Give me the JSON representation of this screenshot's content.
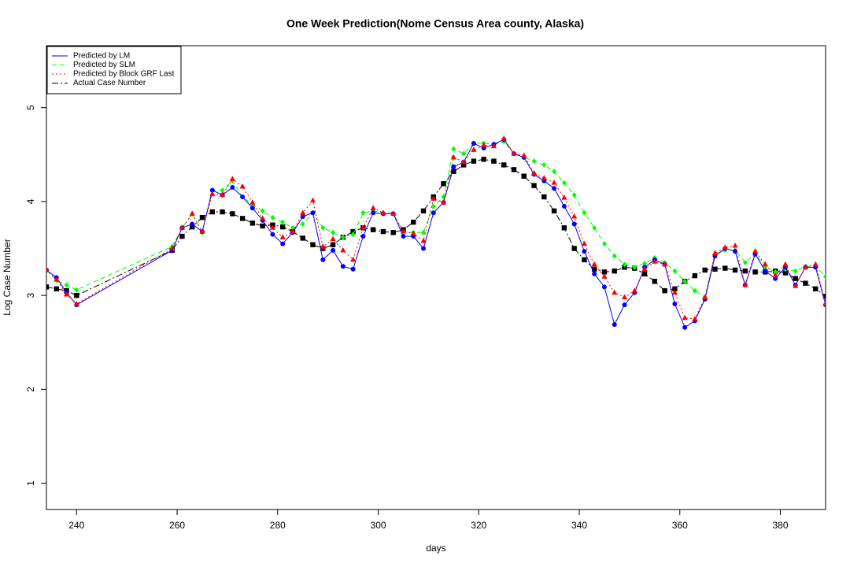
{
  "chart_data": {
    "type": "line",
    "title": "One Week Prediction(Nome Census Area county, Alaska)",
    "x_label": "days",
    "y_label": "Log Case Number",
    "xlim": [
      234,
      389
    ],
    "ylim": [
      0.72,
      5.66
    ],
    "xticks": [
      240,
      260,
      280,
      300,
      320,
      340,
      360,
      380
    ],
    "yticks": [
      1,
      2,
      3,
      4,
      5
    ],
    "legend_position": "top-left",
    "x": [
      234,
      236,
      238,
      240,
      259,
      261,
      263,
      265,
      267,
      269,
      271,
      273,
      275,
      277,
      279,
      281,
      283,
      285,
      287,
      289,
      291,
      293,
      295,
      297,
      299,
      301,
      303,
      305,
      307,
      309,
      311,
      313,
      315,
      317,
      319,
      321,
      323,
      325,
      327,
      329,
      331,
      333,
      335,
      337,
      339,
      341,
      343,
      345,
      347,
      349,
      351,
      353,
      355,
      357,
      359,
      361,
      363,
      365,
      367,
      369,
      371,
      373,
      375,
      377,
      379,
      381,
      383,
      385,
      387,
      389
    ],
    "series": [
      {
        "name": "Predicted by LM",
        "color": "#0000ff",
        "line_style": "solid",
        "marker": "circle",
        "values": [
          3.27,
          3.19,
          3.03,
          2.9,
          3.48,
          3.72,
          3.76,
          3.68,
          4.12,
          4.07,
          4.15,
          4.05,
          3.93,
          3.8,
          3.65,
          3.55,
          3.67,
          3.84,
          3.88,
          3.38,
          3.48,
          3.31,
          3.28,
          3.63,
          3.88,
          3.87,
          3.87,
          3.63,
          3.63,
          3.5,
          3.88,
          3.99,
          4.37,
          4.42,
          4.62,
          4.57,
          4.61,
          4.66,
          4.51,
          4.47,
          4.29,
          4.22,
          4.14,
          3.95,
          3.76,
          3.47,
          3.23,
          3.09,
          2.69,
          2.9,
          3.03,
          3.3,
          3.38,
          3.33,
          2.91,
          2.66,
          2.73,
          2.96,
          3.42,
          3.5,
          3.47,
          3.11,
          3.44,
          3.26,
          3.18,
          3.3,
          3.11,
          3.3,
          3.3,
          2.9
        ]
      },
      {
        "name": "Predicted by SLM",
        "color": "#00ff00",
        "line_style": "dashed",
        "marker": "diamond",
        "values": [
          3.27,
          3.16,
          3.11,
          3.06,
          3.52,
          3.72,
          3.87,
          3.67,
          4.12,
          4.12,
          4.22,
          4.05,
          3.97,
          3.9,
          3.83,
          3.78,
          3.72,
          3.76,
          3.88,
          3.72,
          3.67,
          3.62,
          3.65,
          3.88,
          3.9,
          3.88,
          3.87,
          3.68,
          3.67,
          3.67,
          3.95,
          4.05,
          4.56,
          4.51,
          4.62,
          4.62,
          4.61,
          4.64,
          4.51,
          4.47,
          4.43,
          4.39,
          4.32,
          4.2,
          4.07,
          3.88,
          3.72,
          3.55,
          3.42,
          3.33,
          3.3,
          3.34,
          3.4,
          3.35,
          3.26,
          3.15,
          3.05,
          2.98,
          3.44,
          3.48,
          3.48,
          3.35,
          3.45,
          3.3,
          3.25,
          3.28,
          3.26,
          3.31,
          3.31,
          3.2
        ]
      },
      {
        "name": "Predicted by Block GRF Last",
        "color": "#ff0000",
        "line_style": "dotted",
        "marker": "triangle",
        "values": [
          3.27,
          3.17,
          3.01,
          2.91,
          3.5,
          3.72,
          3.87,
          3.68,
          4.08,
          4.07,
          4.24,
          4.16,
          3.99,
          3.82,
          3.72,
          3.62,
          3.68,
          3.88,
          4.01,
          3.52,
          3.6,
          3.48,
          3.38,
          3.72,
          3.93,
          3.88,
          3.87,
          3.68,
          3.66,
          3.58,
          4.03,
          3.99,
          4.47,
          4.42,
          4.55,
          4.6,
          4.59,
          4.67,
          4.51,
          4.49,
          4.3,
          4.25,
          4.2,
          4.04,
          3.84,
          3.55,
          3.33,
          3.2,
          3.03,
          2.98,
          3.05,
          3.28,
          3.36,
          3.33,
          3.03,
          2.76,
          2.75,
          2.98,
          3.45,
          3.51,
          3.53,
          3.11,
          3.47,
          3.33,
          3.21,
          3.33,
          3.1,
          3.3,
          3.33,
          2.91
        ]
      },
      {
        "name": "Actual Case Number",
        "color": "#000000",
        "line_style": "dashdot",
        "marker": "square",
        "values": [
          3.09,
          3.07,
          3.05,
          3.0,
          3.48,
          3.63,
          3.73,
          3.83,
          3.89,
          3.89,
          3.87,
          3.82,
          3.77,
          3.74,
          3.75,
          3.73,
          3.68,
          3.61,
          3.54,
          3.5,
          3.54,
          3.62,
          3.68,
          3.72,
          3.7,
          3.68,
          3.67,
          3.7,
          3.78,
          3.9,
          4.05,
          4.19,
          4.32,
          4.39,
          4.43,
          4.45,
          4.43,
          4.39,
          4.34,
          4.27,
          4.17,
          4.05,
          3.9,
          3.72,
          3.5,
          3.38,
          3.28,
          3.25,
          3.26,
          3.3,
          3.29,
          3.23,
          3.15,
          3.05,
          3.07,
          3.15,
          3.21,
          3.27,
          3.28,
          3.29,
          3.27,
          3.26,
          3.25,
          3.25,
          3.26,
          3.24,
          3.18,
          3.13,
          3.07,
          2.99
        ]
      }
    ]
  }
}
